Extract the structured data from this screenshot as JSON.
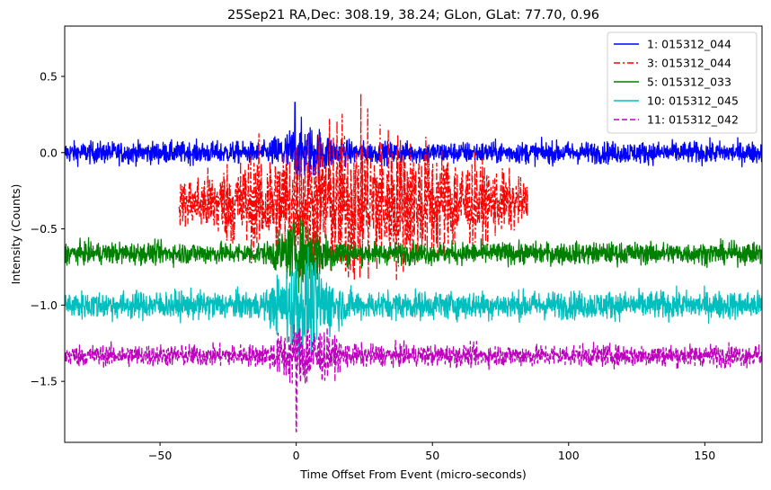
{
  "chart_data": {
    "type": "line",
    "title": "25Sep21 RA,Dec:  308.19,  38.24; GLon, GLat:   77.70,   0.96",
    "xlabel": "Time Offset From Event (micro-seconds)",
    "ylabel": "Intensity (Counts)",
    "xlim": [
      -85,
      171
    ],
    "ylim": [
      -1.9,
      0.83
    ],
    "x_ticks": [
      -50,
      0,
      50,
      100,
      150
    ],
    "x_tick_labels": [
      "−50",
      "0",
      "50",
      "100",
      "150"
    ],
    "y_ticks": [
      0.5,
      0.0,
      -0.5,
      -1.0,
      -1.5
    ],
    "y_tick_labels": [
      "0.5",
      "0.0",
      "−0.5",
      "−1.0",
      "−1.5"
    ],
    "grid": false,
    "legend_position": "top-right",
    "series": [
      {
        "name": "1: 015312_044",
        "label": "1: 015312_044",
        "color": "#0000ff",
        "style": "solid",
        "x_range": [
          -85,
          171
        ],
        "baseline": 0.0,
        "noise": 0.035,
        "burst_amp": 0.06,
        "spike": 0.33,
        "spike_x": -0.5
      },
      {
        "name": "3: 015312_044",
        "label": " 3: 015312_044",
        "color": "#ff0000",
        "style": "dashdot",
        "x_range": [
          -43,
          85
        ],
        "baseline": -0.33,
        "noise": 0.07,
        "burst_amp": 0.18,
        "spike": 0.18,
        "spike_x": 0.5
      },
      {
        "name": "5: 015312_033",
        "label": " 5: 015312_033",
        "color": "#008000",
        "style": "solid",
        "x_range": [
          -85,
          171
        ],
        "baseline": -0.66,
        "noise": 0.035,
        "burst_amp": 0.07,
        "spike": 0.2,
        "spike_x": -1.0
      },
      {
        "name": "10: 015312_045",
        "label": "10: 015312_045",
        "color": "#00bfbf",
        "style": "solid",
        "x_range": [
          -85,
          171
        ],
        "baseline": -1.0,
        "noise": 0.045,
        "burst_amp": 0.12,
        "spike": 0.28,
        "spike_x": 0.0
      },
      {
        "name": "11: 015312_042",
        "label": "11: 015312_042",
        "color": "#bf00bf",
        "style": "dashed",
        "x_range": [
          -85,
          171
        ],
        "baseline": -1.33,
        "noise": 0.035,
        "burst_amp": 0.08,
        "spike": -0.5,
        "spike_x": 0.0
      }
    ]
  }
}
